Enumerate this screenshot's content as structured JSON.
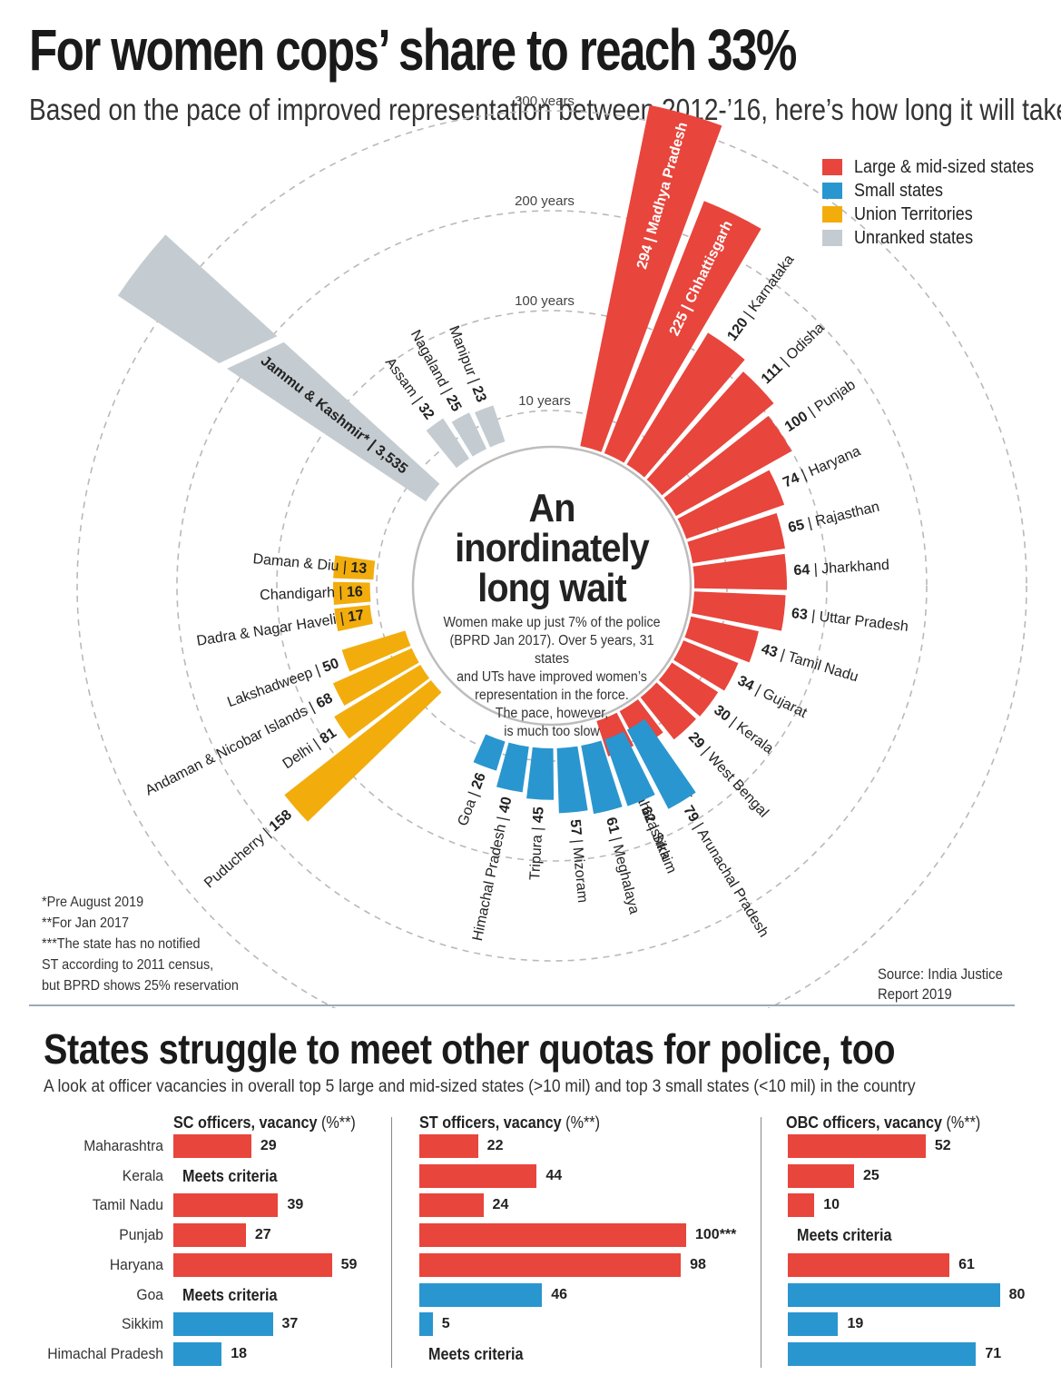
{
  "title": "For women cops’ share to reach 33%",
  "subtitle": "Based on the pace of improved representation between 2012-’16, here’s how long it will take",
  "legend": [
    {
      "label": "Large & mid-sized states",
      "color": "#e8453c"
    },
    {
      "label": "Small states",
      "color": "#2a96cf"
    },
    {
      "label": "Union Territories",
      "color": "#f2ad0d"
    },
    {
      "label": "Unranked states",
      "color": "#c4ccd1"
    }
  ],
  "center": {
    "title_lines": [
      "An",
      "inordinately",
      "long wait"
    ],
    "text": "Women make up just 7% of the police\n(BPRD Jan 2017). Over 5 years, 31 states\nand UTs have improved women’s\nrepresentation in the force.\nThe pace, however,\nis much too slow"
  },
  "notes": [
    "*Pre August 2019",
    "**For Jan 2017",
    "***The state has no notified",
    "ST according to 2011 census,",
    "but BPRD shows 25% reservation"
  ],
  "source": "Source: India Justice\nReport 2019",
  "chart_data": [
    {
      "type": "bar",
      "layout": "radial",
      "title": "An inordinately long wait",
      "unit": "years",
      "rings": [
        {
          "value": 10,
          "label": "10 years"
        },
        {
          "value": 100,
          "label": "100 years"
        },
        {
          "value": 200,
          "label": "200 years"
        },
        {
          "value": 300,
          "label": "300 years"
        }
      ],
      "series": [
        {
          "name": "Large & mid-sized states",
          "color": "#e8453c",
          "categories": [
            "Madhya Pradesh",
            "Chhattisgarh",
            "Karnataka",
            "Odisha",
            "Punjab",
            "Haryana",
            "Rajasthan",
            "Jharkhand",
            "Uttar Pradesh",
            "Tamil Nadu",
            "Gujarat",
            "Kerala",
            "West Bengal",
            "Bihar",
            "Maharashtra"
          ],
          "values": [
            294,
            225,
            120,
            111,
            100,
            74,
            65,
            64,
            63,
            43,
            34,
            30,
            29,
            18,
            14
          ]
        },
        {
          "name": "Small states",
          "color": "#2a96cf",
          "categories": [
            "Goa",
            "Himachal Pradesh",
            "Tripura",
            "Mizoram",
            "Meghalaya",
            "Sikkim",
            "Arunachal Pradesh"
          ],
          "values": [
            26,
            40,
            45,
            57,
            61,
            62,
            79
          ]
        },
        {
          "name": "Union Territories",
          "color": "#f2ad0d",
          "categories": [
            "Daman & Diu",
            "Chandigarh",
            "Dadra & Nagar Haveli",
            "Lakshadweep",
            "Andaman & Nicobar Islands",
            "Delhi",
            "Puducherry"
          ],
          "values": [
            13,
            16,
            17,
            50,
            68,
            81,
            158
          ]
        },
        {
          "name": "Unranked states",
          "color": "#c4ccd1",
          "categories": [
            "Assam",
            "Nagaland",
            "Manipur",
            "Jammu & Kashmir*"
          ],
          "values": [
            32,
            25,
            23,
            3535
          ]
        }
      ]
    },
    {
      "type": "bar",
      "title": "States struggle to meet other quotas for police, too",
      "subtitle": "A look at officer vacancies in overall top 5 large and mid-sized states (>10 mil) and top 3 small states (<10 mil) in the country",
      "categories": [
        "Maharashtra",
        "Kerala",
        "Tamil Nadu",
        "Punjab",
        "Haryana",
        "Goa",
        "Sikkim",
        "Himachal Pradesh"
      ],
      "group": [
        "large",
        "large",
        "large",
        "large",
        "large",
        "small",
        "small",
        "small"
      ],
      "meets_label": "Meets criteria",
      "panels": [
        {
          "name": "SC officers, vacancy",
          "unit": "(%**)",
          "values": [
            29,
            null,
            39,
            27,
            59,
            null,
            37,
            18
          ],
          "labels": [
            "29",
            "Meets criteria",
            "39",
            "27",
            "59",
            "Meets criteria",
            "37",
            "18"
          ]
        },
        {
          "name": "ST officers, vacancy",
          "unit": "(%**)",
          "values": [
            22,
            44,
            24,
            100,
            98,
            46,
            5,
            null
          ],
          "labels": [
            "22",
            "44",
            "24",
            "100***",
            "98",
            "46",
            "5",
            "Meets criteria"
          ]
        },
        {
          "name": "OBC officers, vacancy",
          "unit": "(%**)",
          "values": [
            52,
            25,
            10,
            null,
            61,
            80,
            19,
            71
          ],
          "labels": [
            "52",
            "25",
            "10",
            "Meets criteria",
            "61",
            "80",
            "19",
            "71"
          ]
        }
      ]
    }
  ]
}
